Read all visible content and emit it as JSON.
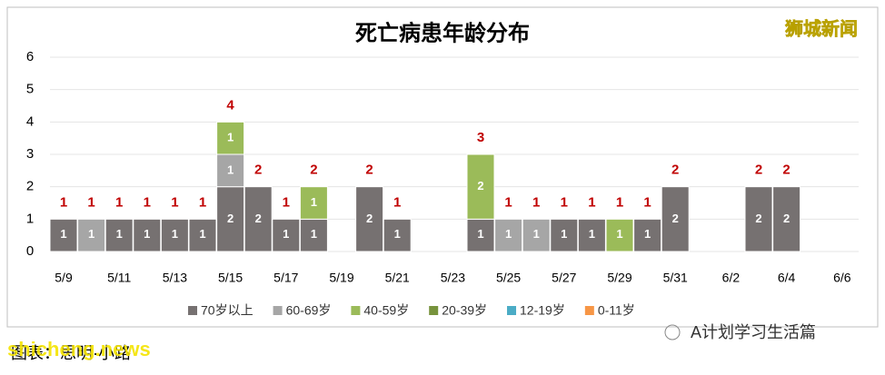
{
  "chart_data": {
    "type": "stacked-bar",
    "title": "死亡病患年龄分布",
    "categories": [
      "5/9",
      null,
      "5/11",
      null,
      "5/13",
      null,
      "5/15",
      null,
      "5/17",
      null,
      "5/19",
      null,
      "5/21",
      null,
      "5/23",
      null,
      "5/25",
      null,
      "5/27",
      null,
      "5/29",
      null,
      "5/31",
      null,
      "6/2",
      null,
      "6/4",
      null,
      "6/6"
    ],
    "series": [
      {
        "name": "70岁以上",
        "color": "#767171",
        "values": [
          1,
          null,
          1,
          1,
          1,
          1,
          2,
          2,
          1,
          1,
          null,
          2,
          1,
          null,
          null,
          1,
          null,
          null,
          1,
          1,
          null,
          1,
          2,
          null,
          null,
          2,
          2,
          null,
          null
        ]
      },
      {
        "name": "60-69岁",
        "color": "#a6a6a6",
        "values": [
          null,
          1,
          null,
          null,
          null,
          null,
          1,
          null,
          null,
          null,
          null,
          null,
          null,
          null,
          null,
          null,
          1,
          1,
          null,
          null,
          null,
          null,
          null,
          null,
          null,
          null,
          null,
          null,
          null
        ]
      },
      {
        "name": "40-59岁",
        "color": "#9bbb59",
        "values": [
          null,
          null,
          null,
          null,
          null,
          null,
          1,
          null,
          null,
          1,
          null,
          null,
          null,
          null,
          null,
          2,
          null,
          null,
          null,
          null,
          1,
          null,
          null,
          null,
          null,
          null,
          null,
          null,
          null
        ]
      },
      {
        "name": "20-39岁",
        "color": "#77933c",
        "values": [
          null,
          null,
          null,
          null,
          null,
          null,
          null,
          null,
          null,
          null,
          null,
          null,
          null,
          null,
          null,
          null,
          null,
          null,
          null,
          null,
          null,
          null,
          null,
          null,
          null,
          null,
          null,
          null,
          null
        ]
      },
      {
        "name": "12-19岁",
        "color": "#4bacc6",
        "values": [
          null,
          null,
          null,
          null,
          null,
          null,
          null,
          null,
          null,
          null,
          null,
          null,
          null,
          null,
          null,
          null,
          null,
          null,
          null,
          null,
          null,
          null,
          null,
          null,
          null,
          null,
          null,
          null,
          null
        ]
      },
      {
        "name": "0-11岁",
        "color": "#f79646",
        "values": [
          null,
          null,
          null,
          null,
          null,
          null,
          null,
          null,
          null,
          null,
          null,
          null,
          null,
          null,
          null,
          null,
          null,
          null,
          null,
          null,
          null,
          null,
          null,
          null,
          null,
          null,
          null,
          null,
          null
        ]
      }
    ],
    "totals": [
      1,
      1,
      1,
      1,
      1,
      1,
      4,
      2,
      1,
      2,
      null,
      2,
      1,
      null,
      null,
      3,
      1,
      1,
      1,
      1,
      1,
      1,
      2,
      null,
      null,
      2,
      2,
      null,
      null
    ],
    "total_color": "#c00000",
    "ylim": [
      0,
      6
    ],
    "yticks": [
      0,
      1,
      2,
      3,
      4,
      5,
      6
    ],
    "grid": true,
    "legend": "bottom"
  },
  "watermark": "狮城新闻",
  "site": "shicheng.news",
  "credit": "图表：思明·小路",
  "account": "A计划学习生活篇"
}
